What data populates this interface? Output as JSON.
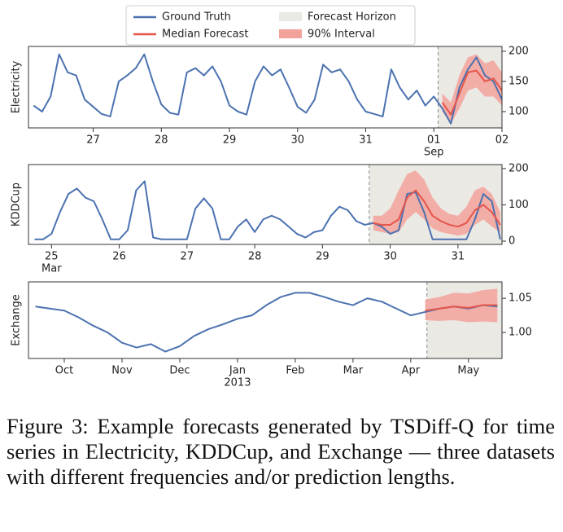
{
  "chart_data": [
    {
      "type": "line",
      "ylabel": "Electricity",
      "x": [
        26.125,
        26.25,
        26.375,
        26.5,
        26.625,
        26.75,
        26.875,
        27,
        27.125,
        27.25,
        27.375,
        27.5,
        27.625,
        27.75,
        27.875,
        28,
        28.125,
        28.25,
        28.375,
        28.5,
        28.625,
        28.75,
        28.875,
        29,
        29.125,
        29.25,
        29.375,
        29.5,
        29.625,
        29.75,
        29.875,
        30,
        30.125,
        30.25,
        30.375,
        30.5,
        30.625,
        30.75,
        30.875,
        31,
        31.125,
        31.25,
        31.375,
        31.5,
        31.625,
        31.75,
        31.875,
        32,
        32.125,
        32.25,
        32.375,
        32.5,
        32.625,
        32.75,
        32.875,
        33
      ],
      "series": [
        {
          "name": "Ground Truth",
          "color": "#4c72b0",
          "values": [
            110,
            100,
            125,
            195,
            165,
            160,
            120,
            108,
            96,
            92,
            150,
            160,
            172,
            195,
            150,
            112,
            98,
            95,
            165,
            172,
            160,
            175,
            150,
            110,
            100,
            95,
            150,
            175,
            160,
            170,
            140,
            108,
            98,
            120,
            178,
            165,
            170,
            150,
            120,
            100,
            96,
            92,
            170,
            140,
            120,
            135,
            110,
            125,
            105,
            80,
            140,
            170,
            190,
            160,
            150,
            120
          ]
        },
        {
          "name": "Median Forecast",
          "color": "#e5554b",
          "x": [
            32.125,
            32.25,
            32.375,
            32.5,
            32.625,
            32.75,
            32.875,
            33
          ],
          "values": [
            115,
            95,
            130,
            165,
            168,
            150,
            155,
            135
          ]
        }
      ],
      "interval": {
        "name": "90% Interval",
        "color": "#f3a29b",
        "lower": [
          100,
          80,
          105,
          135,
          140,
          125,
          125,
          110
        ],
        "upper": [
          130,
          115,
          160,
          190,
          195,
          180,
          185,
          165
        ]
      },
      "horizon": {
        "name": "Forecast Horizon",
        "color": "#ebe9e4",
        "start": 32.0625
      },
      "xlim": [
        26.05,
        33
      ],
      "ylim": [
        73,
        208
      ],
      "yticks": [
        100,
        150,
        200
      ],
      "xticks": [
        27,
        28,
        29,
        30,
        31,
        {
          "value": 32,
          "label": "01",
          "sublabel": "Sep"
        },
        {
          "value": 33,
          "label": "02"
        }
      ]
    },
    {
      "type": "line",
      "ylabel": "KDDCup",
      "x": [
        24.75,
        24.875,
        25,
        25.125,
        25.25,
        25.375,
        25.5,
        25.625,
        25.75,
        25.875,
        26,
        26.125,
        26.25,
        26.375,
        26.5,
        26.625,
        26.75,
        26.875,
        27,
        27.125,
        27.25,
        27.375,
        27.5,
        27.625,
        27.75,
        27.875,
        28,
        28.125,
        28.25,
        28.375,
        28.5,
        28.625,
        28.75,
        28.875,
        29,
        29.125,
        29.25,
        29.375,
        29.5,
        29.625,
        29.75,
        29.875,
        30,
        30.125,
        30.25,
        30.375,
        30.5,
        30.625,
        30.75,
        30.875,
        31,
        31.125,
        31.25,
        31.375,
        31.5,
        31.625
      ],
      "series": [
        {
          "color": "#4c72b0",
          "values": [
            5,
            5,
            20,
            80,
            130,
            145,
            120,
            110,
            60,
            5,
            5,
            30,
            140,
            165,
            10,
            5,
            5,
            5,
            5,
            90,
            118,
            90,
            5,
            5,
            40,
            60,
            25,
            60,
            70,
            60,
            40,
            20,
            10,
            25,
            30,
            70,
            95,
            85,
            55,
            45,
            50,
            40,
            20,
            30,
            130,
            135,
            80,
            5,
            5,
            5,
            5,
            5,
            60,
            130,
            110,
            5
          ]
        },
        {
          "color": "#e5554b",
          "x": [
            29.75,
            29.875,
            30,
            30.125,
            30.25,
            30.375,
            30.5,
            30.625,
            30.75,
            30.875,
            31,
            31.125,
            31.25,
            31.375,
            31.5,
            31.625
          ],
          "values": [
            50,
            45,
            45,
            60,
            120,
            140,
            110,
            70,
            55,
            45,
            40,
            50,
            85,
            100,
            80,
            45
          ]
        }
      ],
      "interval": {
        "color": "#f3a29b",
        "lower": [
          30,
          25,
          20,
          25,
          60,
          80,
          60,
          35,
          25,
          20,
          15,
          20,
          45,
          60,
          40,
          25
        ],
        "upper": [
          70,
          70,
          90,
          140,
          185,
          195,
          170,
          120,
          90,
          75,
          70,
          95,
          140,
          150,
          130,
          80
        ]
      },
      "horizon": {
        "color": "#ebe9e4",
        "start": 29.69
      },
      "xlim": [
        24.66,
        31.65
      ],
      "ylim": [
        -9,
        211
      ],
      "yticks": [
        0,
        100,
        200
      ],
      "xticks": [
        {
          "value": 25,
          "label": "25",
          "sublabel": "Mar"
        },
        26,
        27,
        28,
        29,
        30,
        31
      ]
    },
    {
      "type": "line",
      "ylabel": "Exchange",
      "x": [
        9.5,
        9.75,
        10,
        10.25,
        10.5,
        10.75,
        11,
        11.25,
        11.5,
        11.75,
        12,
        12.25,
        12.5,
        12.75,
        13,
        13.25,
        13.5,
        13.75,
        14,
        14.25,
        14.5,
        14.75,
        15,
        15.25,
        15.5,
        15.75,
        16,
        16.25,
        16.5,
        16.75,
        17,
        17.25,
        17.5
      ],
      "series": [
        {
          "color": "#4c72b0",
          "values": [
            1.038,
            1.035,
            1.032,
            1.022,
            1.01,
            1.0,
            0.985,
            0.978,
            0.983,
            0.972,
            0.98,
            0.995,
            1.005,
            1.012,
            1.02,
            1.025,
            1.04,
            1.052,
            1.058,
            1.058,
            1.052,
            1.045,
            1.04,
            1.05,
            1.045,
            1.035,
            1.025,
            1.03,
            1.035,
            1.038,
            1.035,
            1.04,
            1.038
          ]
        },
        {
          "color": "#e5554b",
          "x": [
            16.25,
            16.5,
            16.75,
            17,
            17.25,
            17.5
          ],
          "values": [
            1.032,
            1.035,
            1.038,
            1.036,
            1.04,
            1.04
          ]
        }
      ],
      "interval": {
        "color": "#f3a29b",
        "lower": [
          1.018,
          1.017,
          1.018,
          1.015,
          1.016,
          1.015
        ],
        "upper": [
          1.048,
          1.052,
          1.058,
          1.057,
          1.062,
          1.064
        ]
      },
      "horizon": {
        "color": "#ebe9e4",
        "start": 16.28
      },
      "xlim": [
        9.38,
        17.58
      ],
      "ylim": [
        0.962,
        1.074
      ],
      "yticks": [
        {
          "value": 1,
          "label": "1.00"
        },
        {
          "value": 1.05,
          "label": "1.05"
        }
      ],
      "xticks": [
        {
          "value": 10,
          "label": "Oct"
        },
        {
          "value": 11,
          "label": "Nov"
        },
        {
          "value": 12,
          "label": "Dec"
        },
        {
          "value": 13,
          "label": "Jan",
          "sublabel": "2013"
        },
        {
          "value": 14,
          "label": "Feb"
        },
        {
          "value": 15,
          "label": "Mar"
        },
        {
          "value": 16,
          "label": "Apr"
        },
        {
          "value": 17,
          "label": "May"
        }
      ]
    }
  ],
  "caption": "Figure 3: Example forecasts generated by TSDiff-Q for time series in Electricity, KDDCup, and Exchange — three datasets with different frequencies and/or prediction lengths."
}
